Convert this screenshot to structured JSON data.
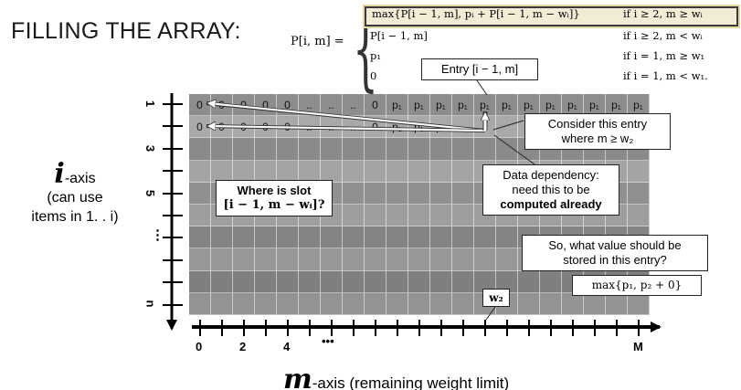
{
  "title": "FILLING THE ARRAY:",
  "recurrence": {
    "lhs": "P[i, m] =",
    "cases": [
      {
        "expr": "max{P[i − 1, m], pᵢ + P[i − 1, m − wᵢ]}",
        "cond": "if i ≥ 2, m ≥ wᵢ"
      },
      {
        "expr": "P[i − 1, m]",
        "cond": "if i ≥ 2, m < wᵢ"
      },
      {
        "expr": "p₁",
        "cond": "if i = 1, m ≥ w₁"
      },
      {
        "expr": "0",
        "cond": "if i = 1, m < w₁."
      }
    ]
  },
  "grid": {
    "row1": [
      "0",
      "0",
      "0",
      "0",
      "0",
      "..",
      "..",
      "..",
      "0",
      "p₁",
      "p₁",
      "p₁",
      "p₁",
      "p₁",
      "p₁",
      "p₁",
      "p₁",
      "p₁",
      "p₁",
      "p₁",
      "p₁"
    ],
    "row2": [
      "0",
      "0",
      "0",
      "0",
      "0",
      "..",
      "..",
      "..",
      "0",
      "p₁",
      "p₁",
      "p₁",
      "",
      "",
      "",
      "",
      "",
      "",
      "",
      "",
      ""
    ],
    "row_shades": [
      "#8d8d8d",
      "#a9a9a9",
      "#8a8a8a",
      "#a4a4a4",
      "#909090",
      "#9e9e9e",
      "#838383",
      "#979797",
      "#7f7f7f",
      "#939393"
    ]
  },
  "callouts": {
    "entry_label": "Entry [i − 1, m]",
    "consider": {
      "line1": "Consider this entry",
      "line2": "where m ≥ w₂"
    },
    "dependency": {
      "line1": "Data dependency:",
      "line2": "need this to be",
      "line3": "computed already"
    },
    "where_slot": {
      "line1": "Where is slot",
      "line2": "[i − 1, m − wᵢ]?"
    },
    "question": {
      "line1": "So, what value should be",
      "line2": "stored in this entry?"
    },
    "answer": "max{p₁, p₂ + 0}",
    "w2": "w₂"
  },
  "x_axis": {
    "ticks": [
      "0",
      "2",
      "4",
      "•••",
      "M"
    ],
    "label_symbol": "m",
    "label_text": "-axis (remaining weight limit)"
  },
  "y_axis": {
    "ticks": [
      "1",
      "3",
      "5",
      "⋮",
      "n"
    ],
    "label_symbol": "i",
    "label_text": "-axis",
    "label_line2": "(can use",
    "label_line3": "items in 1. . i)"
  },
  "colors": {
    "arrow": "#ffffff",
    "axis": "#000000",
    "box_highlight": "#e4d7a6"
  }
}
